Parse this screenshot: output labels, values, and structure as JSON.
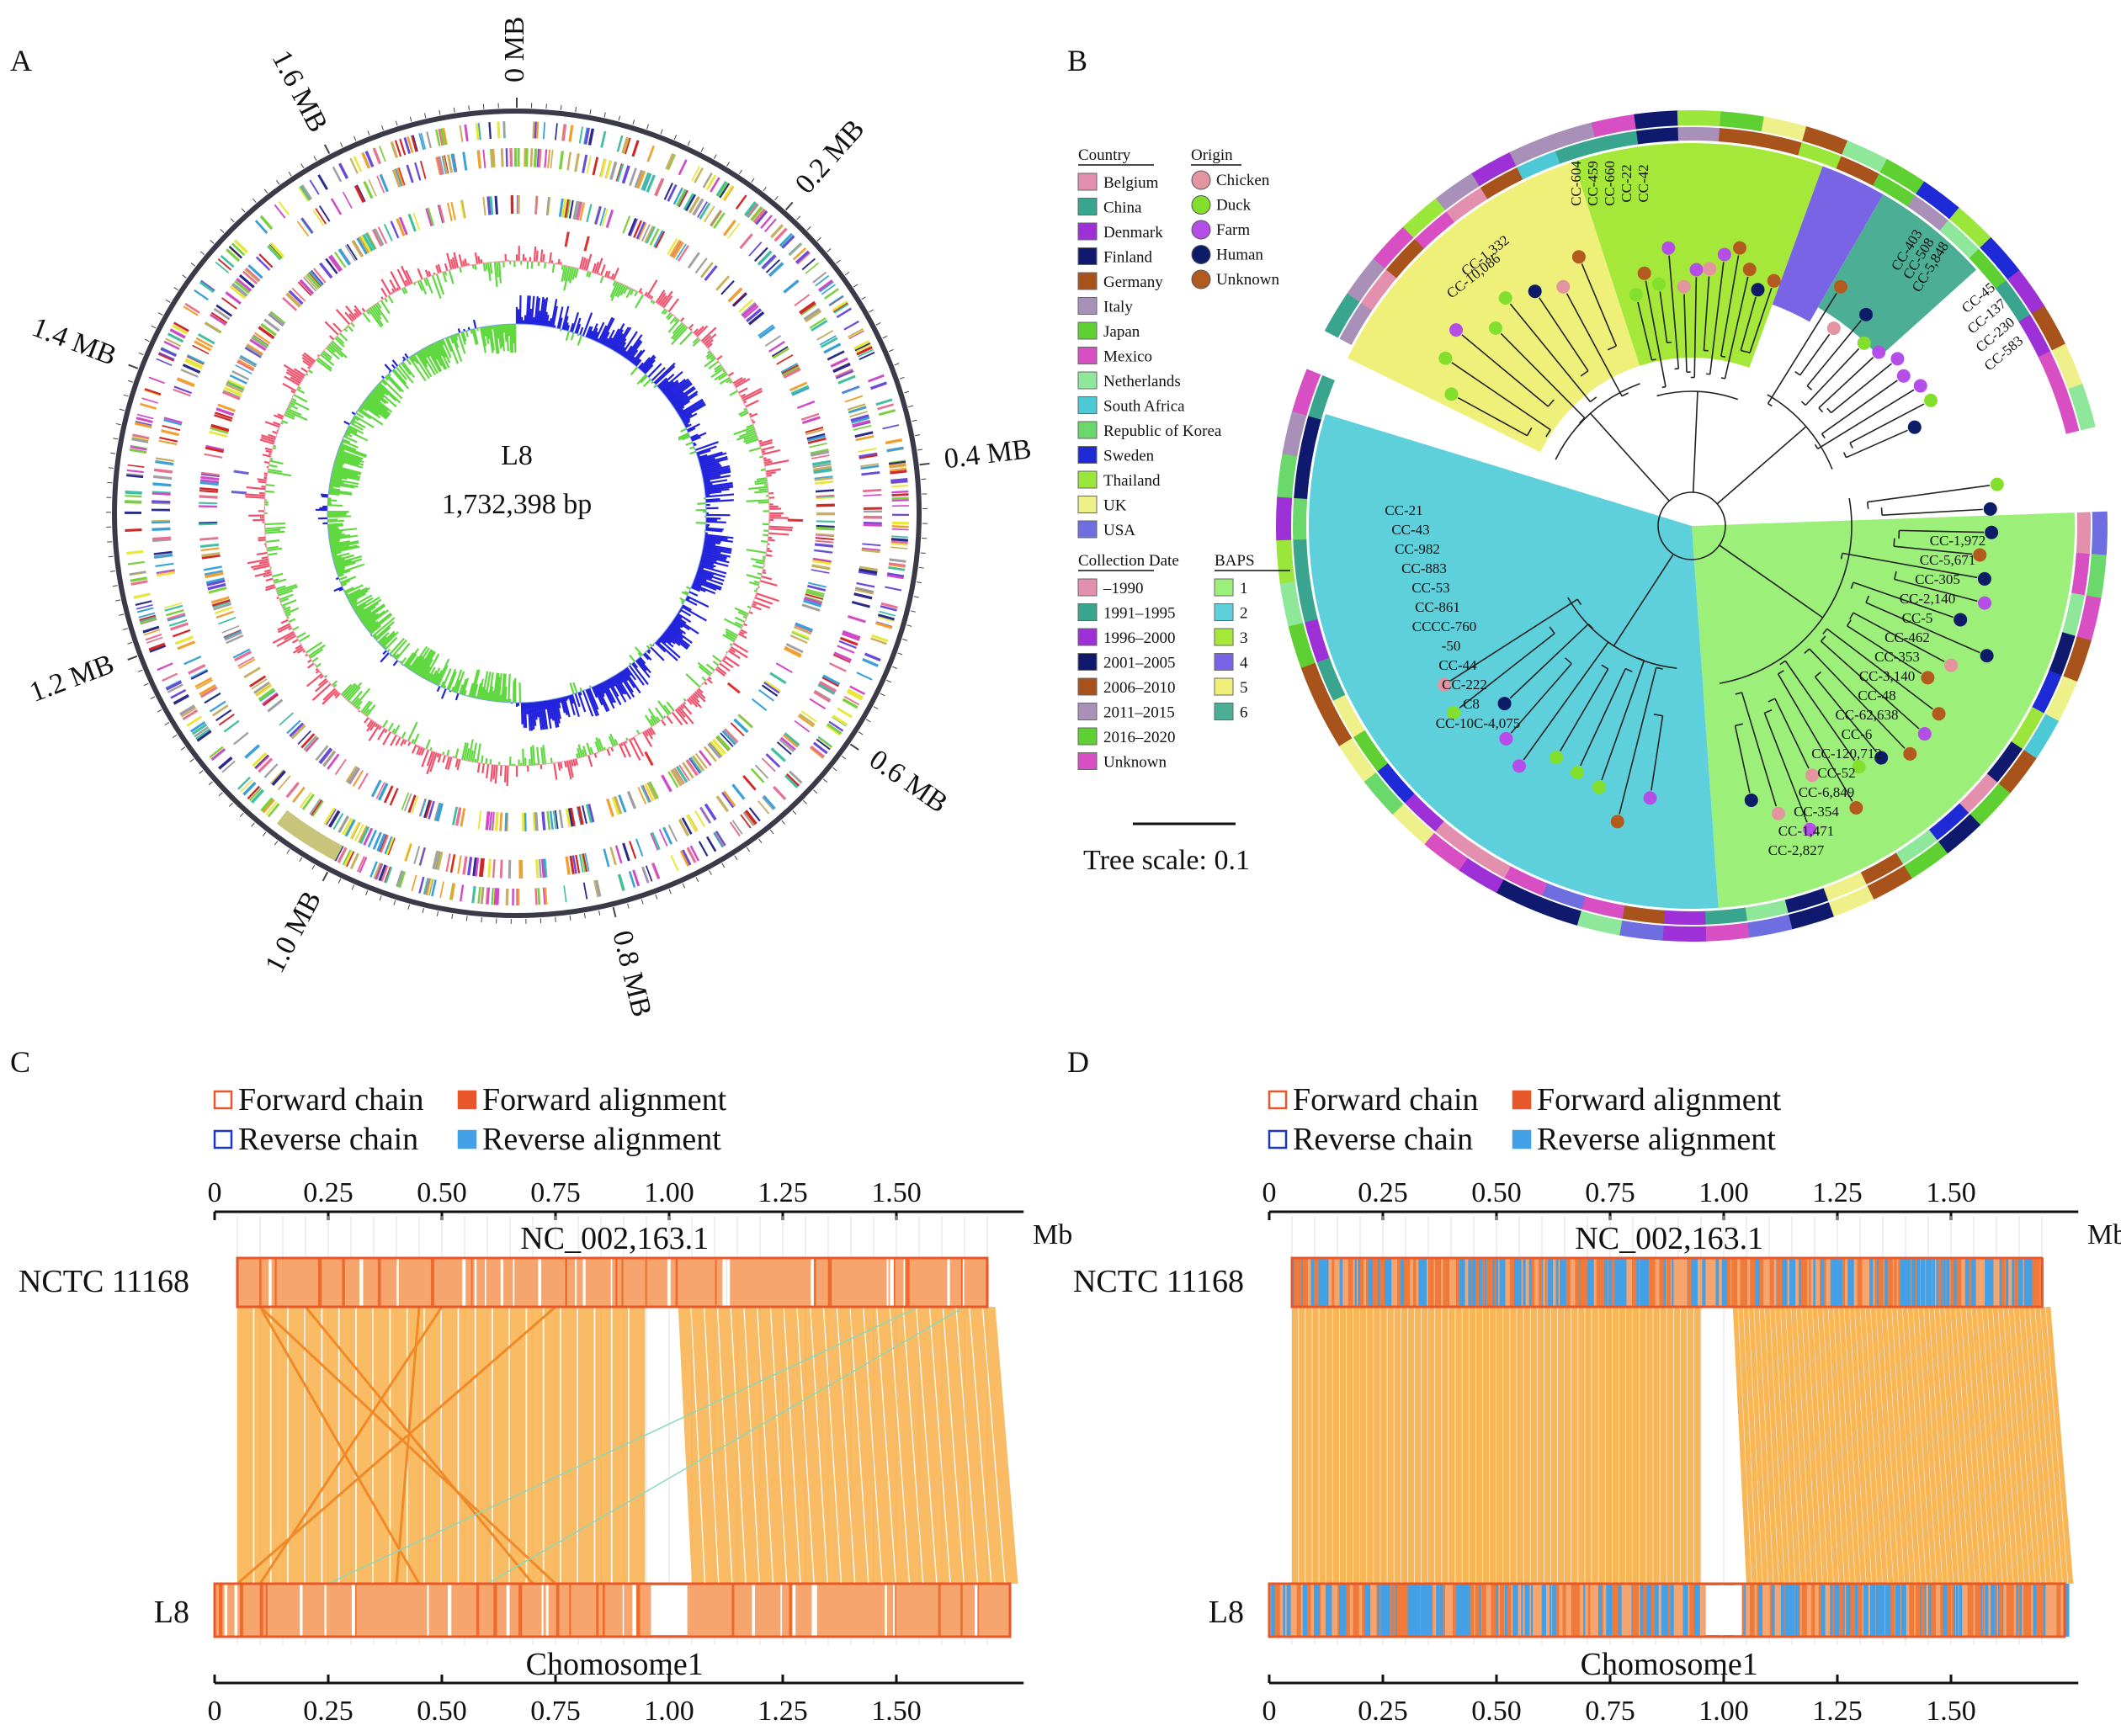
{
  "panels": {
    "A": "A",
    "B": "B",
    "C": "C",
    "D": "D"
  },
  "panel_a": {
    "genome_name": "L8",
    "genome_size": "1,732,398 bp",
    "ticks": [
      "0 MB",
      "0.2 MB",
      "0.4 MB",
      "0.6 MB",
      "0.8 MB",
      "1.0 MB",
      "1.2 MB",
      "1.4 MB",
      "1.6 MB"
    ],
    "tick_positions_mb": [
      0,
      0.2,
      0.4,
      0.6,
      0.8,
      1.0,
      1.2,
      1.4,
      1.6
    ],
    "genome_length_mb": 1.732398
  },
  "panel_b": {
    "legend_country_title": "Country",
    "countries": [
      {
        "name": "Belgium",
        "color": "#e38fae"
      },
      {
        "name": "China",
        "color": "#3aa58e"
      },
      {
        "name": "Denmark",
        "color": "#9d30d6"
      },
      {
        "name": "Finland",
        "color": "#0f1a6e"
      },
      {
        "name": "Germany",
        "color": "#a8521c"
      },
      {
        "name": "Italy",
        "color": "#a890b8"
      },
      {
        "name": "Japan",
        "color": "#5fd032"
      },
      {
        "name": "Mexico",
        "color": "#d84fc4"
      },
      {
        "name": "Netherlands",
        "color": "#8fe89a"
      },
      {
        "name": "South Africa",
        "color": "#4cc8d6"
      },
      {
        "name": "Republic of Korea",
        "color": "#6bd86b"
      },
      {
        "name": "Sweden",
        "color": "#1d2ad6"
      },
      {
        "name": "Thailand",
        "color": "#9be63a"
      },
      {
        "name": "UK",
        "color": "#eef08a"
      },
      {
        "name": "USA",
        "color": "#6f6ee0"
      }
    ],
    "legend_origin_title": "Origin",
    "origins": [
      {
        "name": "Chicken",
        "color": "#e3949f"
      },
      {
        "name": "Duck",
        "color": "#82e02c"
      },
      {
        "name": "Farm",
        "color": "#b54de8"
      },
      {
        "name": "Human",
        "color": "#0c1c66"
      },
      {
        "name": "Unknown",
        "color": "#b35a1f"
      }
    ],
    "legend_date_title": "Collection Date",
    "dates": [
      {
        "name": "–1990",
        "color": "#e38fae"
      },
      {
        "name": "1991–1995",
        "color": "#3aa58e"
      },
      {
        "name": "1996–2000",
        "color": "#9d30d6"
      },
      {
        "name": "2001–2005",
        "color": "#0f1a6e"
      },
      {
        "name": "2006–2010",
        "color": "#a8521c"
      },
      {
        "name": "2011–2015",
        "color": "#a890b8"
      },
      {
        "name": "2016–2020",
        "color": "#5fd032"
      },
      {
        "name": "Unknown",
        "color": "#d84fc4"
      }
    ],
    "legend_baps_title": "BAPS",
    "baps": [
      {
        "name": "1",
        "color": "#9cf07a"
      },
      {
        "name": "2",
        "color": "#5ed0dc"
      },
      {
        "name": "3",
        "color": "#a6e83a"
      },
      {
        "name": "4",
        "color": "#7a64e6"
      },
      {
        "name": "5",
        "color": "#eef07a"
      },
      {
        "name": "6",
        "color": "#4cae94"
      }
    ],
    "tree_scale_label": "Tree scale: 0.1",
    "clades": {
      "yellow": [
        "CC-1,332",
        "CC-10,086"
      ],
      "lime": [
        "CC-604",
        "CC-459",
        "CC-660",
        "CC-22",
        "CC-42"
      ],
      "purple": [
        "CC-403",
        "CC-508",
        "CC-5,848"
      ],
      "teal": [
        "CC-45",
        "CC-137",
        "CC-230",
        "CC-583"
      ],
      "cyan": [
        "CC-21",
        "CC-43",
        "CC-982",
        "CC-883",
        "CC-53",
        "CC-861",
        "CCCC-760",
        "-50",
        "CC-44",
        "CC-222",
        "C8",
        "CC-10C-4,075"
      ],
      "green": [
        "CC-1,972",
        "CC-5,671",
        "CC-305",
        "CC-2,140",
        "CC-5",
        "CC-462",
        "CC-353",
        "CC-3,140",
        "CC-48",
        "CC-62,638",
        "CC-6",
        "CC-120,712",
        "CC-52",
        "CC-6,849",
        "CC-354",
        "CC-1,471",
        "CC-2,827"
      ]
    }
  },
  "panel_c": {
    "legend": {
      "fwd_chain": "Forward chain",
      "fwd_align": "Forward alignment",
      "rev_chain": "Reverse chain",
      "rev_align": "Reverse alignment"
    },
    "axis_unit": "Mb",
    "ticks": [
      "0",
      "0.25",
      "0.50",
      "0.75",
      "1.00",
      "1.25",
      "1.50"
    ],
    "top_name": "NCTC 11168",
    "top_seq": "NC_002,163.1",
    "bottom_name": "L8",
    "bottom_seq": "Chomosome1"
  },
  "panel_d": {
    "legend": {
      "fwd_chain": "Forward chain",
      "fwd_align": "Forward alignment",
      "rev_chain": "Reverse chain",
      "rev_align": "Reverse alignment"
    },
    "axis_unit": "Mb",
    "ticks": [
      "0",
      "0.25",
      "0.50",
      "0.75",
      "1.00",
      "1.25",
      "1.50"
    ],
    "top_name": "NCTC 11168",
    "top_seq": "NC_002,163.1",
    "bottom_name": "L8",
    "bottom_seq": "Chomosome1"
  },
  "colors": {
    "alignment": "#f7a93a",
    "forward_chain": "#e8572a",
    "forward_fill": "#f6a56e",
    "reverse_chain": "#1b36c4",
    "reverse_fill": "#43a0e6",
    "gc_positive": "#f0506a",
    "gc_negative": "#60d840",
    "skew_positive": "#2222dd",
    "skew_negative": "#60d840"
  }
}
